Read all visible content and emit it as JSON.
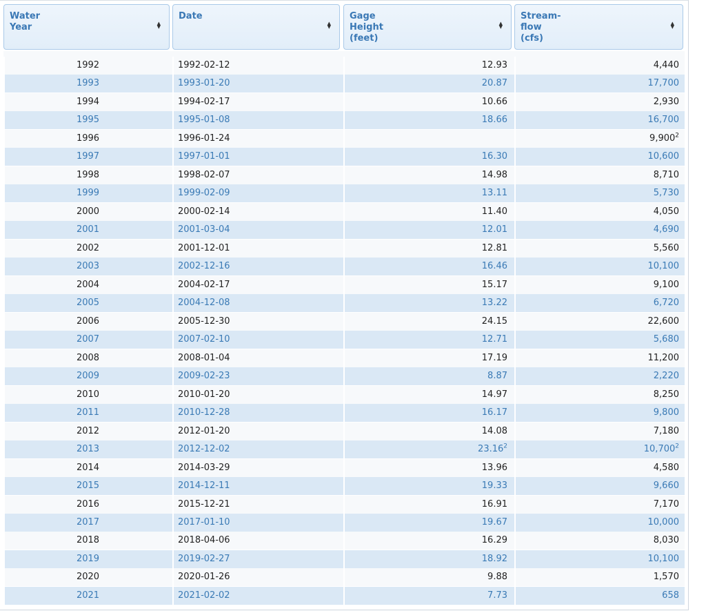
{
  "table": {
    "columns": [
      [
        "Water",
        "Year"
      ],
      [
        "Date"
      ],
      [
        "Gage",
        "Height",
        "(feet)"
      ],
      [
        "Stream-",
        "flow",
        "(cfs)"
      ]
    ],
    "rows": [
      [
        "1992",
        "1992-02-12",
        "12.93",
        "4,440"
      ],
      [
        "1993",
        "1993-01-20",
        "20.87",
        "17,700"
      ],
      [
        "1994",
        "1994-02-17",
        "10.66",
        "2,930"
      ],
      [
        "1995",
        "1995-01-08",
        "18.66",
        "16,700"
      ],
      [
        "1996",
        "1996-01-24",
        null,
        {
          "text": "9,900",
          "sup": "2"
        }
      ],
      [
        "1997",
        "1997-01-01",
        "16.30",
        "10,600"
      ],
      [
        "1998",
        "1998-02-07",
        "14.98",
        "8,710"
      ],
      [
        "1999",
        "1999-02-09",
        "13.11",
        "5,730"
      ],
      [
        "2000",
        "2000-02-14",
        "11.40",
        "4,050"
      ],
      [
        "2001",
        "2001-03-04",
        "12.01",
        "4,690"
      ],
      [
        "2002",
        "2001-12-01",
        "12.81",
        "5,560"
      ],
      [
        "2003",
        "2002-12-16",
        "16.46",
        "10,100"
      ],
      [
        "2004",
        "2004-02-17",
        "15.17",
        "9,100"
      ],
      [
        "2005",
        "2004-12-08",
        "13.22",
        "6,720"
      ],
      [
        "2006",
        "2005-12-30",
        "24.15",
        "22,600"
      ],
      [
        "2007",
        "2007-02-10",
        "12.71",
        "5,680"
      ],
      [
        "2008",
        "2008-01-04",
        "17.19",
        "11,200"
      ],
      [
        "2009",
        "2009-02-23",
        "8.87",
        "2,220"
      ],
      [
        "2010",
        "2010-01-20",
        "14.97",
        "8,250"
      ],
      [
        "2011",
        "2010-12-28",
        "16.17",
        "9,800"
      ],
      [
        "2012",
        "2012-01-20",
        "14.08",
        "7,180"
      ],
      [
        "2013",
        "2012-12-02",
        {
          "text": "23.16",
          "sup": "2"
        },
        {
          "text": "10,700",
          "sup": "2"
        }
      ],
      [
        "2014",
        "2014-03-29",
        "13.96",
        "4,580"
      ],
      [
        "2015",
        "2014-12-11",
        "19.33",
        "9,660"
      ],
      [
        "2016",
        "2015-12-21",
        "16.91",
        "7,170"
      ],
      [
        "2017",
        "2017-01-10",
        "19.67",
        "10,000"
      ],
      [
        "2018",
        "2018-04-06",
        "16.29",
        "8,030"
      ],
      [
        "2019",
        "2019-02-27",
        "18.92",
        "10,100"
      ],
      [
        "2020",
        "2020-01-26",
        "9.88",
        "1,570"
      ],
      [
        "2021",
        "2021-02-02",
        "7.73",
        "658"
      ]
    ]
  }
}
